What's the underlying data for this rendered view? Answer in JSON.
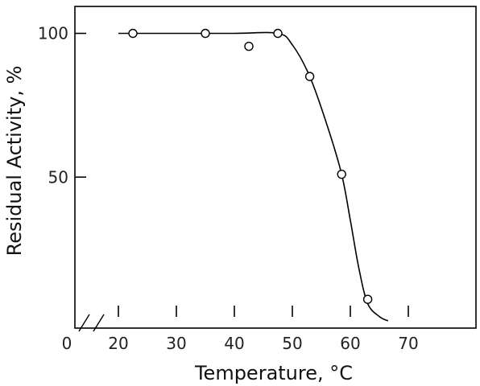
{
  "chart_data": {
    "type": "scatter",
    "xlabel": "Temperature, °C",
    "ylabel": "Residual Activity, %",
    "xlim": [
      0,
      80
    ],
    "ylim": [
      0,
      105
    ],
    "x_axis_break": true,
    "x_ticks": [
      0,
      20,
      30,
      40,
      50,
      60,
      70
    ],
    "x_tick_labels": [
      "0",
      "20",
      "30",
      "40",
      "50",
      "60",
      "70"
    ],
    "y_ticks": [
      50,
      100
    ],
    "y_tick_labels": [
      "50",
      "100"
    ],
    "grid": false,
    "legend": "none",
    "series": [
      {
        "marker": "open-circle",
        "x": [
          22.5,
          35,
          42.5,
          47.5,
          53,
          58.5,
          63
        ],
        "y": [
          100,
          100,
          95.5,
          100,
          85,
          51,
          7.5
        ]
      }
    ],
    "fit_curve": {
      "x": [
        20,
        30,
        40,
        47.5,
        50,
        53,
        56,
        58.5,
        60,
        61.5,
        63,
        65,
        66.5
      ],
      "y": [
        100,
        100,
        100,
        100,
        96,
        85,
        68,
        51,
        35,
        18,
        6,
        1.5,
        0
      ]
    }
  },
  "colors": {
    "line": "#000000",
    "marker": "#000000",
    "background": "#ffffff"
  }
}
